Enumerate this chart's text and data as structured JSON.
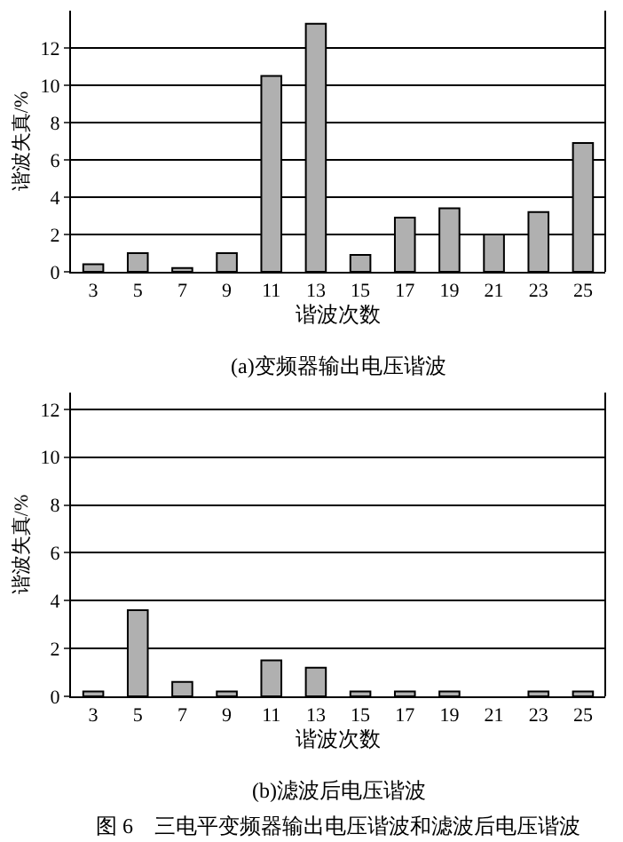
{
  "chart_data": [
    {
      "type": "bar",
      "title": "(a)变频器输出电压谐波",
      "xlabel": "谐波次数",
      "ylabel": "谐波失真/%",
      "categories": [
        "3",
        "5",
        "7",
        "9",
        "11",
        "13",
        "15",
        "17",
        "19",
        "21",
        "23",
        "25"
      ],
      "series": [
        {
          "color": "#b0b0b0",
          "values": [
            0.4,
            1.0,
            0.2,
            1.0,
            10.5,
            13.3,
            0.9,
            2.9,
            3.4,
            2.0,
            3.2,
            6.9
          ]
        }
      ],
      "ylim": [
        0,
        14
      ],
      "yticks": [
        0,
        2,
        4,
        6,
        8,
        10,
        12
      ],
      "grid": "y"
    },
    {
      "type": "bar",
      "title": "(b)滤波后电压谐波",
      "xlabel": "谐波次数",
      "ylabel": "谐波失真/%",
      "categories": [
        "3",
        "5",
        "7",
        "9",
        "11",
        "13",
        "15",
        "17",
        "19",
        "21",
        "23",
        "25"
      ],
      "series": [
        {
          "color": "#b0b0b0",
          "values": [
            0.2,
            3.6,
            0.6,
            0.2,
            1.5,
            1.2,
            0.2,
            0.2,
            0.2,
            null,
            0.2,
            0.2
          ]
        }
      ],
      "ylim": [
        0,
        12.7
      ],
      "yticks": [
        0,
        2,
        4,
        6,
        8,
        10,
        12
      ],
      "grid": "y",
      "annotations": [
        "图 6　三电平变频器输出电压谐波和滤波后电压谐波"
      ]
    }
  ]
}
